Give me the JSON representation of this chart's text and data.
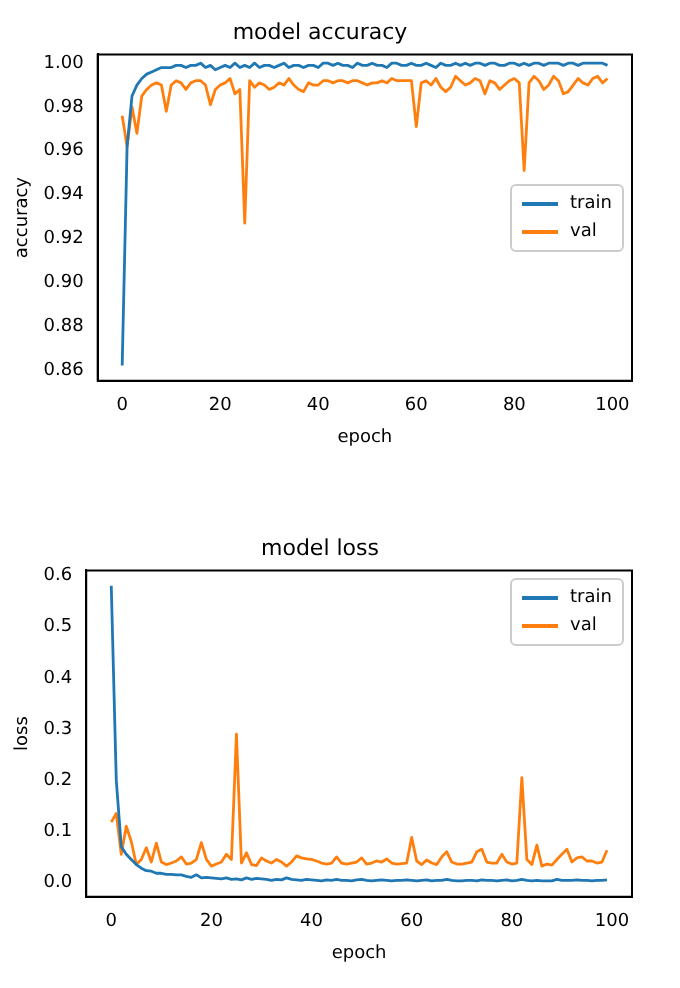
{
  "chart_data": [
    {
      "type": "line",
      "title": "model accuracy",
      "xlabel": "epoch",
      "ylabel": "accuracy",
      "legend": "center right",
      "x": [
        0,
        1,
        2,
        3,
        4,
        5,
        6,
        7,
        8,
        9,
        10,
        11,
        12,
        13,
        14,
        15,
        16,
        17,
        18,
        19,
        20,
        21,
        22,
        23,
        24,
        25,
        26,
        27,
        28,
        29,
        30,
        31,
        32,
        33,
        34,
        35,
        36,
        37,
        38,
        39,
        40,
        41,
        42,
        43,
        44,
        45,
        46,
        47,
        48,
        49,
        50,
        51,
        52,
        53,
        54,
        55,
        56,
        57,
        58,
        59,
        60,
        61,
        62,
        63,
        64,
        65,
        66,
        67,
        68,
        69,
        70,
        71,
        72,
        73,
        74,
        75,
        76,
        77,
        78,
        79,
        80,
        81,
        82,
        83,
        84,
        85,
        86,
        87,
        88,
        89,
        90,
        91,
        92,
        93,
        94,
        95,
        96,
        97,
        98,
        99
      ],
      "xlim": [
        -5,
        104
      ],
      "xticks": [
        0,
        20,
        40,
        60,
        80,
        100
      ],
      "ylim": [
        0.855,
        1.004
      ],
      "yticks": [
        {
          "value": 0.86,
          "label": "0.86"
        },
        {
          "value": 0.88,
          "label": "0.88"
        },
        {
          "value": 0.9,
          "label": "0.90"
        },
        {
          "value": 0.92,
          "label": "0.92"
        },
        {
          "value": 0.94,
          "label": "0.94"
        },
        {
          "value": 0.96,
          "label": "0.96"
        },
        {
          "value": 0.98,
          "label": "0.98"
        },
        {
          "value": 1,
          "label": "1.00"
        }
      ],
      "series": [
        {
          "name": "train",
          "color": "#1f77b4",
          "values": [
            0.862,
            0.962,
            0.985,
            0.99,
            0.993,
            0.995,
            0.996,
            0.997,
            0.998,
            0.998,
            0.998,
            0.999,
            0.999,
            0.998,
            0.999,
            0.999,
            1.0,
            0.998,
            0.999,
            0.997,
            0.998,
            0.999,
            0.998,
            1.0,
            0.998,
            0.999,
            0.998,
            1.0,
            0.998,
            0.999,
            0.999,
            0.998,
            0.999,
            1.0,
            0.998,
            0.999,
            0.999,
            0.998,
            0.999,
            0.999,
            0.998,
            1.0,
            1.0,
            0.999,
            1.0,
            0.999,
            0.999,
            0.998,
            1.0,
            0.999,
            0.999,
            1.0,
            0.999,
            0.999,
            0.998,
            1.0,
            1.0,
            0.999,
            0.999,
            1.0,
            0.999,
            0.999,
            1.0,
            0.999,
            0.998,
            1.0,
            0.999,
            0.999,
            1.0,
            0.999,
            1.0,
            0.999,
            1.0,
            1.0,
            0.999,
            1.0,
            1.0,
            0.999,
            0.999,
            1.0,
            1.0,
            0.999,
            1.0,
            0.999,
            1.0,
            1.0,
            0.999,
            1.0,
            1.0,
            1.0,
            0.999,
            1.0,
            1.0,
            0.999,
            1.0,
            1.0,
            1.0,
            1.0,
            1.0,
            0.999
          ]
        },
        {
          "name": "val",
          "color": "#ff7f0e",
          "values": [
            0.976,
            0.962,
            0.98,
            0.968,
            0.985,
            0.988,
            0.99,
            0.991,
            0.99,
            0.978,
            0.99,
            0.992,
            0.991,
            0.988,
            0.991,
            0.992,
            0.992,
            0.99,
            0.981,
            0.988,
            0.99,
            0.991,
            0.993,
            0.986,
            0.988,
            0.927,
            0.992,
            0.989,
            0.991,
            0.99,
            0.988,
            0.989,
            0.991,
            0.99,
            0.993,
            0.99,
            0.988,
            0.987,
            0.991,
            0.99,
            0.99,
            0.992,
            0.992,
            0.991,
            0.992,
            0.992,
            0.991,
            0.992,
            0.992,
            0.991,
            0.99,
            0.991,
            0.991,
            0.992,
            0.991,
            0.993,
            0.992,
            0.992,
            0.992,
            0.992,
            0.971,
            0.991,
            0.992,
            0.99,
            0.993,
            0.989,
            0.987,
            0.989,
            0.994,
            0.992,
            0.99,
            0.991,
            0.993,
            0.992,
            0.986,
            0.992,
            0.991,
            0.988,
            0.99,
            0.992,
            0.993,
            0.991,
            0.951,
            0.991,
            0.994,
            0.992,
            0.988,
            0.99,
            0.994,
            0.992,
            0.986,
            0.987,
            0.99,
            0.993,
            0.991,
            0.99,
            0.993,
            0.994,
            0.991,
            0.993
          ]
        }
      ]
    },
    {
      "type": "line",
      "title": "model loss",
      "xlabel": "epoch",
      "ylabel": "loss",
      "legend": "top right",
      "x": [
        0,
        1,
        2,
        3,
        4,
        5,
        6,
        7,
        8,
        9,
        10,
        11,
        12,
        13,
        14,
        15,
        16,
        17,
        18,
        19,
        20,
        21,
        22,
        23,
        24,
        25,
        26,
        27,
        28,
        29,
        30,
        31,
        32,
        33,
        34,
        35,
        36,
        37,
        38,
        39,
        40,
        41,
        42,
        43,
        44,
        45,
        46,
        47,
        48,
        49,
        50,
        51,
        52,
        53,
        54,
        55,
        56,
        57,
        58,
        59,
        60,
        61,
        62,
        63,
        64,
        65,
        66,
        67,
        68,
        69,
        70,
        71,
        72,
        73,
        74,
        75,
        76,
        77,
        78,
        79,
        80,
        81,
        82,
        83,
        84,
        85,
        86,
        87,
        88,
        89,
        90,
        91,
        92,
        93,
        94,
        95,
        96,
        97,
        98,
        99
      ],
      "xlim": [
        -5,
        104
      ],
      "xticks": [
        0,
        20,
        40,
        60,
        80,
        100
      ],
      "ylim": [
        -0.028,
        0.61
      ],
      "yticks": [
        {
          "value": 0,
          "label": "0.0"
        },
        {
          "value": 0.1,
          "label": "0.1"
        },
        {
          "value": 0.2,
          "label": "0.2"
        },
        {
          "value": 0.3,
          "label": "0.3"
        },
        {
          "value": 0.4,
          "label": "0.4"
        },
        {
          "value": 0.5,
          "label": "0.5"
        },
        {
          "value": 0.6,
          "label": "0.6"
        }
      ],
      "series": [
        {
          "name": "train",
          "color": "#1f77b4",
          "values": [
            0.58,
            0.2,
            0.07,
            0.055,
            0.045,
            0.035,
            0.028,
            0.023,
            0.022,
            0.018,
            0.018,
            0.016,
            0.016,
            0.015,
            0.015,
            0.012,
            0.01,
            0.015,
            0.009,
            0.01,
            0.009,
            0.008,
            0.007,
            0.009,
            0.006,
            0.007,
            0.005,
            0.009,
            0.006,
            0.008,
            0.007,
            0.006,
            0.004,
            0.006,
            0.005,
            0.009,
            0.006,
            0.005,
            0.004,
            0.006,
            0.005,
            0.004,
            0.003,
            0.005,
            0.004,
            0.006,
            0.004,
            0.004,
            0.003,
            0.005,
            0.006,
            0.004,
            0.003,
            0.004,
            0.005,
            0.004,
            0.003,
            0.004,
            0.004,
            0.005,
            0.004,
            0.003,
            0.004,
            0.005,
            0.003,
            0.004,
            0.004,
            0.006,
            0.004,
            0.003,
            0.003,
            0.004,
            0.004,
            0.003,
            0.005,
            0.004,
            0.004,
            0.003,
            0.004,
            0.005,
            0.003,
            0.004,
            0.006,
            0.004,
            0.003,
            0.004,
            0.003,
            0.003,
            0.003,
            0.006,
            0.004,
            0.004,
            0.004,
            0.005,
            0.004,
            0.004,
            0.003,
            0.004,
            0.004,
            0.005
          ]
        },
        {
          "name": "val",
          "color": "#ff7f0e",
          "values": [
            0.118,
            0.135,
            0.055,
            0.11,
            0.08,
            0.035,
            0.045,
            0.068,
            0.04,
            0.077,
            0.04,
            0.035,
            0.038,
            0.042,
            0.05,
            0.036,
            0.038,
            0.045,
            0.078,
            0.045,
            0.032,
            0.036,
            0.04,
            0.055,
            0.045,
            0.29,
            0.038,
            0.058,
            0.035,
            0.033,
            0.048,
            0.042,
            0.038,
            0.045,
            0.04,
            0.032,
            0.04,
            0.052,
            0.048,
            0.046,
            0.045,
            0.042,
            0.038,
            0.036,
            0.038,
            0.05,
            0.038,
            0.036,
            0.038,
            0.04,
            0.048,
            0.036,
            0.038,
            0.042,
            0.04,
            0.046,
            0.038,
            0.036,
            0.037,
            0.038,
            0.088,
            0.042,
            0.035,
            0.044,
            0.038,
            0.035,
            0.05,
            0.06,
            0.04,
            0.036,
            0.036,
            0.038,
            0.04,
            0.06,
            0.065,
            0.04,
            0.038,
            0.038,
            0.055,
            0.04,
            0.036,
            0.038,
            0.205,
            0.045,
            0.035,
            0.073,
            0.032,
            0.036,
            0.034,
            0.045,
            0.055,
            0.065,
            0.04,
            0.048,
            0.05,
            0.042,
            0.042,
            0.038,
            0.04,
            0.063
          ]
        }
      ]
    }
  ]
}
